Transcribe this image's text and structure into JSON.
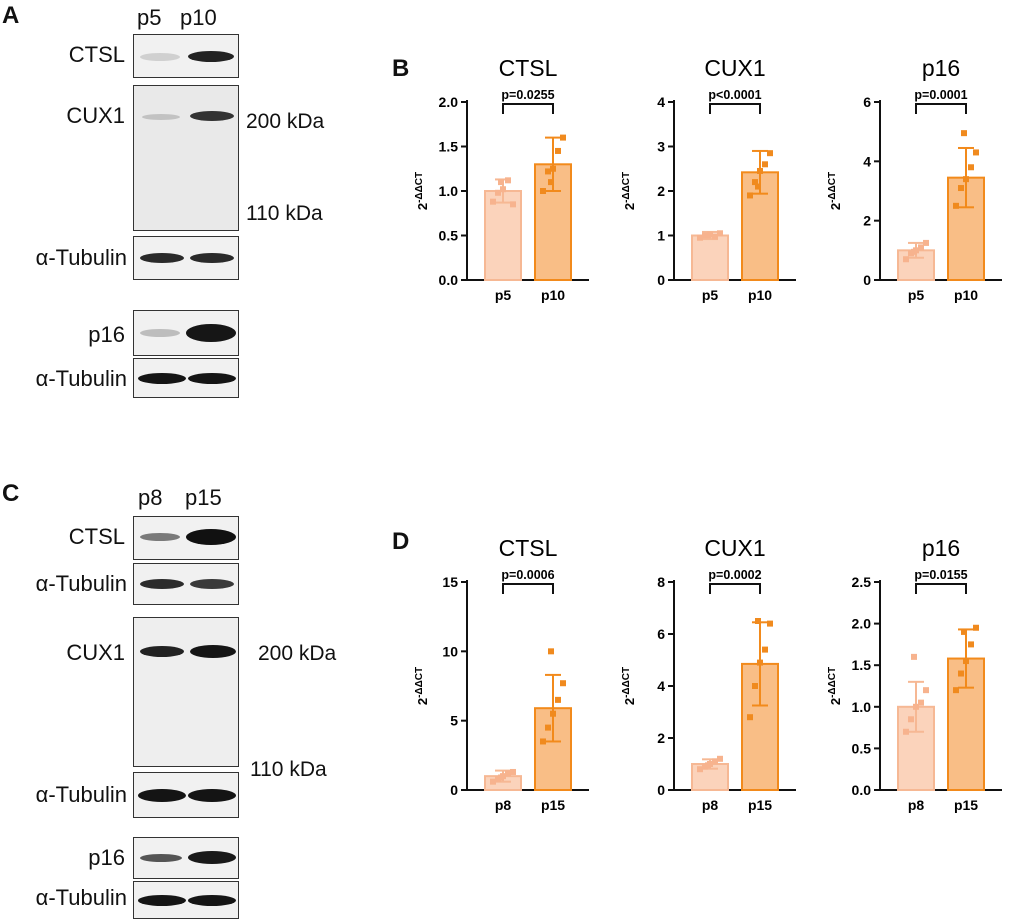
{
  "panels": {
    "A": "A",
    "B": "B",
    "C": "C",
    "D": "D"
  },
  "blots_top": {
    "lanes": [
      "p5",
      "p10"
    ],
    "rows": {
      "ctsl": "CTSL",
      "cux1": "CUX1",
      "tub1": "α-Tubulin",
      "p16": "p16",
      "tub2": "α-Tubulin"
    },
    "kda": {
      "high": "200 kDa",
      "low": "110 kDa"
    }
  },
  "blots_bottom": {
    "lanes": [
      "p8",
      "p15"
    ],
    "rows": {
      "ctsl": "CTSL",
      "tub1": "α-Tubulin",
      "cux1": "CUX1",
      "tub2": "α-Tubulin",
      "p16": "p16",
      "tub3": "α-Tubulin"
    },
    "kda": {
      "high": "200 kDa",
      "low": "110 kDa"
    }
  },
  "colors": {
    "light": "#fbd3bb",
    "light_edge": "#f6b894",
    "dark": "#f9be86",
    "dark_edge": "#f28a1b",
    "light_dot": "#f7b38e",
    "dark_dot": "#f08a1e"
  },
  "chart_data": [
    {
      "type": "bar",
      "title": "CTSL",
      "ylabel": "2-ΔΔCT",
      "categories": [
        "p5",
        "p10"
      ],
      "values": [
        1.0,
        1.3
      ],
      "errors": [
        0.13,
        0.3
      ],
      "ylim": [
        0,
        2.0
      ],
      "yticks": [
        "0.0",
        "0.5",
        "1.0",
        "1.5",
        "2.0"
      ],
      "pvalue": "p=0.0255",
      "points": [
        [
          0.88,
          0.98,
          1.02,
          1.12,
          0.85,
          1.1
        ],
        [
          1.0,
          1.22,
          1.25,
          1.45,
          1.6,
          1.1
        ]
      ]
    },
    {
      "type": "bar",
      "title": "CUX1",
      "ylabel": "2-ΔΔCT",
      "categories": [
        "p5",
        "p10"
      ],
      "values": [
        1.0,
        2.42
      ],
      "errors": [
        0.08,
        0.48
      ],
      "ylim": [
        0,
        4
      ],
      "yticks": [
        "0",
        "1",
        "2",
        "3",
        "4"
      ],
      "pvalue": "p<0.0001",
      "points": [
        [
          0.95,
          1.0,
          1.02,
          0.98,
          1.05,
          1.0
        ],
        [
          1.9,
          2.2,
          2.45,
          2.6,
          2.85,
          2.1
        ]
      ]
    },
    {
      "type": "bar",
      "title": "p16",
      "ylabel": "2-ΔΔCT",
      "categories": [
        "p5",
        "p10"
      ],
      "values": [
        1.0,
        3.45
      ],
      "errors": [
        0.25,
        1.0
      ],
      "ylim": [
        0,
        6
      ],
      "yticks": [
        "0",
        "2",
        "4",
        "6"
      ],
      "pvalue": "p=0.0001",
      "points": [
        [
          0.7,
          0.9,
          1.0,
          1.1,
          1.25,
          0.95
        ],
        [
          2.5,
          3.1,
          3.4,
          3.8,
          4.3,
          4.95
        ]
      ]
    },
    {
      "type": "bar",
      "title": "CTSL",
      "ylabel": "2-ΔΔCT",
      "categories": [
        "p8",
        "p15"
      ],
      "values": [
        1.0,
        5.9
      ],
      "errors": [
        0.4,
        2.4
      ],
      "ylim": [
        0,
        15
      ],
      "yticks": [
        "0",
        "5",
        "10",
        "15"
      ],
      "pvalue": "p=0.0006",
      "points": [
        [
          0.6,
          0.8,
          1.0,
          1.2,
          1.3,
          0.9
        ],
        [
          3.5,
          4.5,
          5.5,
          6.5,
          7.7,
          10.0
        ]
      ]
    },
    {
      "type": "bar",
      "title": "CUX1",
      "ylabel": "2-ΔΔCT",
      "categories": [
        "p8",
        "p15"
      ],
      "values": [
        1.0,
        4.85
      ],
      "errors": [
        0.18,
        1.6
      ],
      "ylim": [
        0,
        8
      ],
      "yticks": [
        "0",
        "2",
        "4",
        "6",
        "8"
      ],
      "pvalue": "p=0.0002",
      "points": [
        [
          0.8,
          0.9,
          1.0,
          1.1,
          1.2,
          0.95
        ],
        [
          2.8,
          4.0,
          4.9,
          5.4,
          6.4,
          6.5
        ]
      ]
    },
    {
      "type": "bar",
      "title": "p16",
      "ylabel": "2-ΔΔCT",
      "categories": [
        "p8",
        "p15"
      ],
      "values": [
        1.0,
        1.58
      ],
      "errors": [
        0.3,
        0.35
      ],
      "ylim": [
        0,
        2.5
      ],
      "yticks": [
        "0.0",
        "0.5",
        "1.0",
        "1.5",
        "2.0",
        "2.5"
      ],
      "pvalue": "p=0.0155",
      "points": [
        [
          0.7,
          0.85,
          1.0,
          1.05,
          1.2,
          1.6
        ],
        [
          1.2,
          1.4,
          1.55,
          1.75,
          1.95,
          1.9
        ]
      ]
    }
  ]
}
